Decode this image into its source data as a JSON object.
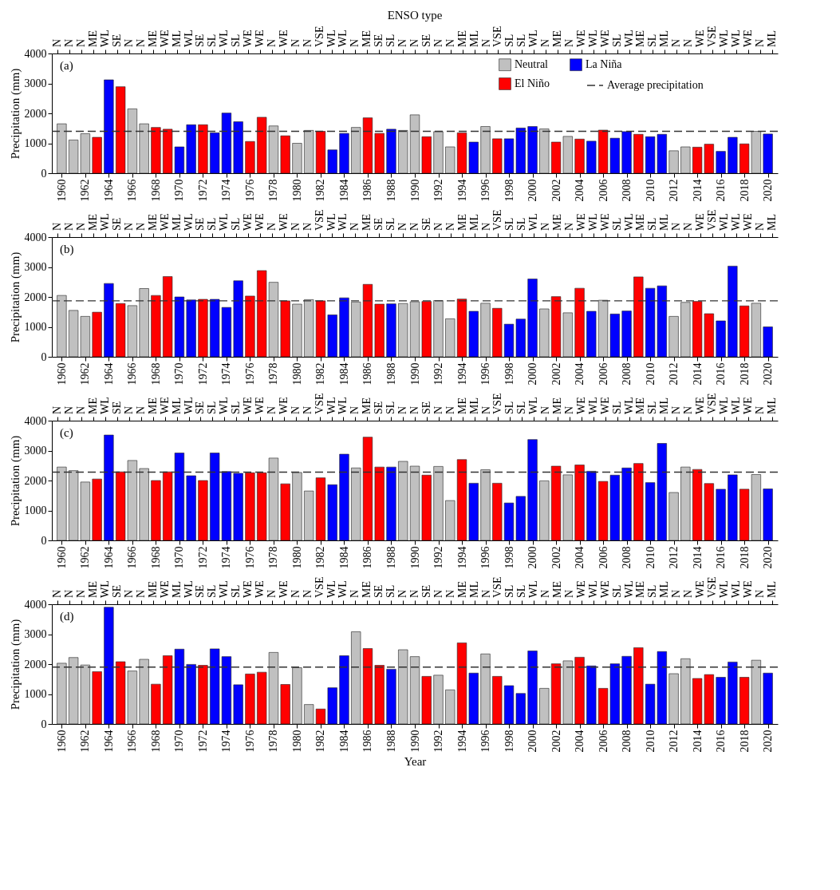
{
  "chart_data": [
    {
      "type": "bar",
      "title": "ENSO type",
      "ylabel": "Precipitation (mm)",
      "legend": "top right",
      "annotations": [
        "(a)",
        "N",
        "N",
        "N",
        "ME",
        "WL",
        "SE",
        "N",
        "N",
        "ME",
        "WE",
        "ML",
        "WL",
        "SE",
        "SL",
        "WL",
        "SL",
        "WE",
        "WE",
        "N",
        "WE",
        "N",
        "N",
        "VSE",
        "WL",
        "WL",
        "N",
        "ME",
        "SE",
        "SL",
        "N",
        "N",
        "SE",
        "N",
        "N",
        "ME",
        "ML",
        "N",
        "VSE",
        "SL",
        "SL",
        "WL",
        "N",
        "ME",
        "N",
        "WE",
        "WL",
        "WE",
        "SL",
        "WL",
        "ME",
        "SL",
        "ML",
        "N",
        "N",
        "WE",
        "VSE",
        "WL",
        "WL",
        "WE",
        "N",
        "ML"
      ],
      "x": [
        1960,
        1961,
        1962,
        1963,
        1964,
        1965,
        1966,
        1967,
        1968,
        1969,
        1970,
        1971,
        1972,
        1973,
        1974,
        1975,
        1976,
        1977,
        1978,
        1979,
        1980,
        1981,
        1982,
        1983,
        1984,
        1985,
        1986,
        1987,
        1988,
        1989,
        1990,
        1991,
        1992,
        1993,
        1994,
        1995,
        1996,
        1997,
        1998,
        1999,
        2000,
        2001,
        2002,
        2003,
        2004,
        2005,
        2006,
        2007,
        2008,
        2009,
        2010,
        2011,
        2012,
        2013,
        2014,
        2015,
        2016,
        2017,
        2018,
        2019,
        2020
      ],
      "xlim": [
        1959.5,
        2020.5
      ],
      "xticks": [
        1960,
        1962,
        1964,
        1966,
        1968,
        1970,
        1972,
        1974,
        1976,
        1978,
        1980,
        1982,
        1984,
        1986,
        1988,
        1990,
        1992,
        1994,
        1996,
        1998,
        2000,
        2002,
        2004,
        2006,
        2008,
        2010,
        2012,
        2014,
        2016,
        2018,
        2020
      ],
      "ylim": [
        0,
        4000
      ],
      "yticks": [
        0,
        1000,
        2000,
        3000,
        4000
      ],
      "ref_lines": [
        {
          "axis": "y",
          "value": 1400,
          "label": "Average precipitation",
          "line_style": "dashed"
        }
      ],
      "series": [
        {
          "name": "Neutral",
          "color": "#c0c0c0",
          "values": [
            1650,
            1110,
            1320,
            null,
            null,
            null,
            2150,
            1650,
            null,
            null,
            null,
            null,
            null,
            null,
            null,
            null,
            null,
            null,
            1580,
            null,
            1000,
            1430,
            null,
            null,
            null,
            1530,
            null,
            null,
            null,
            1430,
            1950,
            null,
            1390,
            880,
            null,
            null,
            1560,
            null,
            null,
            null,
            null,
            1480,
            null,
            1230,
            null,
            null,
            null,
            null,
            null,
            null,
            null,
            null,
            750,
            880,
            null,
            null,
            null,
            null,
            null,
            1400,
            null
          ]
        },
        {
          "name": "El Niño",
          "color": "#ff0000",
          "values": [
            null,
            null,
            null,
            1200,
            null,
            2890,
            null,
            null,
            1530,
            1470,
            null,
            null,
            1620,
            null,
            null,
            null,
            1060,
            1870,
            null,
            1250,
            null,
            null,
            1400,
            null,
            null,
            null,
            1850,
            1330,
            null,
            null,
            null,
            1220,
            null,
            null,
            1350,
            null,
            null,
            1150,
            null,
            null,
            null,
            null,
            1040,
            null,
            1140,
            null,
            1440,
            null,
            null,
            1300,
            null,
            null,
            null,
            null,
            870,
            970,
            null,
            null,
            980,
            null,
            null
          ]
        },
        {
          "name": "La Niña",
          "color": "#0000ff",
          "values": [
            null,
            null,
            null,
            null,
            3120,
            null,
            null,
            null,
            null,
            null,
            880,
            1620,
            null,
            1350,
            2010,
            1720,
            null,
            null,
            null,
            null,
            null,
            null,
            null,
            780,
            1330,
            null,
            null,
            null,
            1470,
            null,
            null,
            null,
            null,
            null,
            null,
            1040,
            null,
            null,
            1150,
            1510,
            1560,
            null,
            null,
            null,
            null,
            1070,
            null,
            1170,
            1390,
            null,
            1220,
            1300,
            null,
            null,
            null,
            null,
            730,
            1200,
            null,
            null,
            1310
          ]
        }
      ]
    },
    {
      "type": "bar",
      "ylabel": "Precipitation (mm)",
      "annotations": [
        "(b)",
        "N",
        "N",
        "N",
        "ME",
        "WL",
        "SE",
        "N",
        "N",
        "ME",
        "WE",
        "ML",
        "WL",
        "SE",
        "SL",
        "WL",
        "SL",
        "WE",
        "WE",
        "N",
        "WE",
        "N",
        "N",
        "VSE",
        "WL",
        "WL",
        "N",
        "ME",
        "SE",
        "SL",
        "N",
        "N",
        "SE",
        "N",
        "N",
        "ME",
        "ML",
        "N",
        "VSE",
        "SL",
        "SL",
        "WL",
        "N",
        "ME",
        "N",
        "WE",
        "WL",
        "WE",
        "SL",
        "WL",
        "ME",
        "SL",
        "ML",
        "N",
        "N",
        "WE",
        "VSE",
        "WL",
        "WL",
        "WE",
        "N",
        "ML"
      ],
      "x": [
        1960,
        1961,
        1962,
        1963,
        1964,
        1965,
        1966,
        1967,
        1968,
        1969,
        1970,
        1971,
        1972,
        1973,
        1974,
        1975,
        1976,
        1977,
        1978,
        1979,
        1980,
        1981,
        1982,
        1983,
        1984,
        1985,
        1986,
        1987,
        1988,
        1989,
        1990,
        1991,
        1992,
        1993,
        1994,
        1995,
        1996,
        1997,
        1998,
        1999,
        2000,
        2001,
        2002,
        2003,
        2004,
        2005,
        2006,
        2007,
        2008,
        2009,
        2010,
        2011,
        2012,
        2013,
        2014,
        2015,
        2016,
        2017,
        2018,
        2019,
        2020
      ],
      "xlim": [
        1959.5,
        2020.5
      ],
      "xticks": [
        1960,
        1962,
        1964,
        1966,
        1968,
        1970,
        1972,
        1974,
        1976,
        1978,
        1980,
        1982,
        1984,
        1986,
        1988,
        1990,
        1992,
        1994,
        1996,
        1998,
        2000,
        2002,
        2004,
        2006,
        2008,
        2010,
        2012,
        2014,
        2016,
        2018,
        2020
      ],
      "ylim": [
        0,
        4000
      ],
      "yticks": [
        0,
        1000,
        2000,
        3000,
        4000
      ],
      "ref_lines": [
        {
          "axis": "y",
          "value": 1870,
          "line_style": "dashed"
        }
      ],
      "series": [
        {
          "color": "#c0c0c0",
          "values": [
            2050,
            1550,
            1350,
            null,
            null,
            null,
            1710,
            2280,
            null,
            null,
            null,
            null,
            null,
            null,
            null,
            null,
            null,
            null,
            2490,
            null,
            1760,
            1910,
            null,
            null,
            null,
            1830,
            null,
            null,
            null,
            1780,
            1840,
            null,
            1880,
            1270,
            null,
            null,
            1790,
            null,
            null,
            null,
            null,
            1600,
            null,
            1470,
            null,
            null,
            1890,
            null,
            null,
            null,
            null,
            null,
            1350,
            1820,
            null,
            null,
            null,
            null,
            null,
            1790,
            null
          ]
        },
        {
          "color": "#ff0000",
          "values": [
            null,
            null,
            null,
            1490,
            null,
            1780,
            null,
            null,
            2050,
            2680,
            null,
            null,
            1920,
            null,
            null,
            null,
            2030,
            2880,
            null,
            1870,
            null,
            null,
            1870,
            null,
            null,
            null,
            2420,
            1760,
            null,
            null,
            null,
            1850,
            null,
            null,
            1930,
            null,
            null,
            1620,
            null,
            null,
            null,
            null,
            2010,
            null,
            2290,
            null,
            null,
            null,
            null,
            2670,
            null,
            null,
            null,
            null,
            1850,
            1440,
            null,
            null,
            1700,
            null,
            null
          ]
        },
        {
          "color": "#0000ff",
          "values": [
            null,
            null,
            null,
            null,
            2450,
            null,
            null,
            null,
            null,
            null,
            2000,
            1900,
            null,
            1920,
            1650,
            2540,
            null,
            null,
            null,
            null,
            null,
            null,
            null,
            1400,
            1970,
            null,
            null,
            null,
            1770,
            null,
            null,
            null,
            null,
            null,
            null,
            1520,
            null,
            null,
            1090,
            1260,
            2600,
            null,
            null,
            null,
            null,
            1520,
            null,
            1430,
            1530,
            null,
            2290,
            2370,
            null,
            null,
            null,
            null,
            1200,
            3030,
            null,
            null,
            1000
          ]
        }
      ]
    },
    {
      "type": "bar",
      "ylabel": "Precipitation (mm)",
      "annotations": [
        "(c)",
        "N",
        "N",
        "N",
        "ME",
        "WL",
        "SE",
        "N",
        "N",
        "ME",
        "WE",
        "ML",
        "WL",
        "SE",
        "SL",
        "WL",
        "SL",
        "WE",
        "WE",
        "N",
        "WE",
        "N",
        "N",
        "VSE",
        "WL",
        "WL",
        "N",
        "ME",
        "SE",
        "SL",
        "N",
        "N",
        "SE",
        "N",
        "N",
        "ME",
        "ML",
        "N",
        "VSE",
        "SL",
        "SL",
        "WL",
        "N",
        "ME",
        "N",
        "WE",
        "WL",
        "WE",
        "SL",
        "WL",
        "ME",
        "SL",
        "ML",
        "N",
        "N",
        "WE",
        "VSE",
        "WL",
        "WL",
        "WE",
        "N",
        "ML"
      ],
      "x": [
        1960,
        1961,
        1962,
        1963,
        1964,
        1965,
        1966,
        1967,
        1968,
        1969,
        1970,
        1971,
        1972,
        1973,
        1974,
        1975,
        1976,
        1977,
        1978,
        1979,
        1980,
        1981,
        1982,
        1983,
        1984,
        1985,
        1986,
        1987,
        1988,
        1989,
        1990,
        1991,
        1992,
        1993,
        1994,
        1995,
        1996,
        1997,
        1998,
        1999,
        2000,
        2001,
        2002,
        2003,
        2004,
        2005,
        2006,
        2007,
        2008,
        2009,
        2010,
        2011,
        2012,
        2013,
        2014,
        2015,
        2016,
        2017,
        2018,
        2019,
        2020
      ],
      "xlim": [
        1959.5,
        2020.5
      ],
      "xticks": [
        1960,
        1962,
        1964,
        1966,
        1968,
        1970,
        1972,
        1974,
        1976,
        1978,
        1980,
        1982,
        1984,
        1986,
        1988,
        1990,
        1992,
        1994,
        1996,
        1998,
        2000,
        2002,
        2004,
        2006,
        2008,
        2010,
        2012,
        2014,
        2016,
        2018,
        2020
      ],
      "ylim": [
        0,
        4000
      ],
      "yticks": [
        0,
        1000,
        2000,
        3000,
        4000
      ],
      "ref_lines": [
        {
          "axis": "y",
          "value": 2280,
          "line_style": "dashed"
        }
      ],
      "series": [
        {
          "color": "#c0c0c0",
          "values": [
            2450,
            2330,
            1950,
            null,
            null,
            null,
            2670,
            2400,
            null,
            null,
            null,
            null,
            null,
            null,
            null,
            null,
            null,
            null,
            2750,
            null,
            2270,
            1650,
            null,
            null,
            null,
            2420,
            null,
            null,
            null,
            2640,
            2480,
            null,
            2470,
            1330,
            null,
            null,
            2360,
            null,
            null,
            null,
            null,
            1990,
            null,
            2190,
            null,
            null,
            null,
            null,
            null,
            null,
            null,
            null,
            1600,
            2450,
            null,
            null,
            null,
            null,
            null,
            2200,
            null
          ]
        },
        {
          "color": "#ff0000",
          "values": [
            null,
            null,
            null,
            2050,
            null,
            2290,
            null,
            null,
            2000,
            2290,
            null,
            null,
            2000,
            null,
            null,
            null,
            2260,
            2260,
            null,
            1890,
            null,
            null,
            2090,
            null,
            null,
            null,
            3450,
            2450,
            null,
            null,
            null,
            2180,
            null,
            null,
            2700,
            null,
            null,
            1910,
            null,
            null,
            null,
            null,
            2480,
            null,
            2520,
            null,
            1970,
            null,
            null,
            2570,
            null,
            null,
            null,
            null,
            2370,
            1900,
            null,
            null,
            1710,
            null,
            null
          ]
        },
        {
          "color": "#0000ff",
          "values": [
            null,
            null,
            null,
            null,
            3520,
            null,
            null,
            null,
            null,
            null,
            2920,
            2160,
            null,
            2920,
            2300,
            2240,
            null,
            null,
            null,
            null,
            null,
            null,
            null,
            1860,
            2880,
            null,
            null,
            null,
            2450,
            null,
            null,
            null,
            null,
            null,
            null,
            1910,
            null,
            null,
            1250,
            1470,
            3370,
            null,
            null,
            null,
            null,
            2310,
            null,
            2180,
            2420,
            null,
            1930,
            3240,
            null,
            null,
            null,
            null,
            1710,
            2190,
            null,
            null,
            1720
          ]
        }
      ]
    },
    {
      "type": "bar",
      "xlabel": "Year",
      "ylabel": "Precipitation (mm)",
      "annotations": [
        "(d)",
        "N",
        "N",
        "N",
        "ME",
        "WL",
        "SE",
        "N",
        "N",
        "ME",
        "WE",
        "ML",
        "WL",
        "SE",
        "SL",
        "WL",
        "SL",
        "WE",
        "WE",
        "N",
        "WE",
        "N",
        "N",
        "VSE",
        "WL",
        "WL",
        "N",
        "ME",
        "SE",
        "SL",
        "N",
        "N",
        "SE",
        "N",
        "N",
        "ME",
        "ML",
        "N",
        "VSE",
        "SL",
        "SL",
        "WL",
        "N",
        "ME",
        "N",
        "WE",
        "WL",
        "WE",
        "SL",
        "WL",
        "ME",
        "SL",
        "ML",
        "N",
        "N",
        "WE",
        "VSE",
        "WL",
        "WL",
        "WE",
        "N",
        "ML"
      ],
      "x": [
        1960,
        1961,
        1962,
        1963,
        1964,
        1965,
        1966,
        1967,
        1968,
        1969,
        1970,
        1971,
        1972,
        1973,
        1974,
        1975,
        1976,
        1977,
        1978,
        1979,
        1980,
        1981,
        1982,
        1983,
        1984,
        1985,
        1986,
        1987,
        1988,
        1989,
        1990,
        1991,
        1992,
        1993,
        1994,
        1995,
        1996,
        1997,
        1998,
        1999,
        2000,
        2001,
        2002,
        2003,
        2004,
        2005,
        2006,
        2007,
        2008,
        2009,
        2010,
        2011,
        2012,
        2013,
        2014,
        2015,
        2016,
        2017,
        2018,
        2019,
        2020
      ],
      "xlim": [
        1959.5,
        2020.5
      ],
      "xticks": [
        1960,
        1962,
        1964,
        1966,
        1968,
        1970,
        1972,
        1974,
        1976,
        1978,
        1980,
        1982,
        1984,
        1986,
        1988,
        1990,
        1992,
        1994,
        1996,
        1998,
        2000,
        2002,
        2004,
        2006,
        2008,
        2010,
        2012,
        2014,
        2016,
        2018,
        2020
      ],
      "ylim": [
        0,
        4000
      ],
      "yticks": [
        0,
        1000,
        2000,
        3000,
        4000
      ],
      "ref_lines": [
        {
          "axis": "y",
          "value": 1900,
          "line_style": "dashed"
        }
      ],
      "series": [
        {
          "color": "#c0c0c0",
          "values": [
            2030,
            2220,
            1970,
            null,
            null,
            null,
            1770,
            2160,
            null,
            null,
            null,
            null,
            null,
            null,
            null,
            null,
            null,
            null,
            2390,
            null,
            1880,
            650,
            null,
            null,
            null,
            3080,
            null,
            null,
            null,
            2480,
            2250,
            null,
            1630,
            1140,
            null,
            null,
            2340,
            null,
            null,
            null,
            null,
            1190,
            null,
            2110,
            null,
            null,
            null,
            null,
            null,
            null,
            null,
            null,
            1680,
            2180,
            null,
            null,
            null,
            null,
            null,
            2130,
            null
          ]
        },
        {
          "color": "#ff0000",
          "values": [
            null,
            null,
            null,
            1750,
            null,
            2080,
            null,
            null,
            1330,
            2280,
            null,
            null,
            1960,
            null,
            null,
            null,
            1670,
            1730,
            null,
            1320,
            null,
            null,
            500,
            null,
            null,
            null,
            2520,
            1960,
            null,
            null,
            null,
            1590,
            null,
            null,
            2710,
            null,
            null,
            1590,
            null,
            null,
            null,
            null,
            2010,
            null,
            2230,
            null,
            1190,
            null,
            null,
            2550,
            null,
            null,
            null,
            null,
            1520,
            1650,
            null,
            null,
            1560,
            null,
            null
          ]
        },
        {
          "color": "#0000ff",
          "values": [
            null,
            null,
            null,
            null,
            3900,
            null,
            null,
            null,
            null,
            null,
            2500,
            1990,
            null,
            2510,
            2250,
            1310,
            null,
            null,
            null,
            null,
            null,
            null,
            null,
            1210,
            2280,
            null,
            null,
            null,
            1830,
            null,
            null,
            null,
            null,
            null,
            null,
            1700,
            null,
            null,
            1280,
            1020,
            2440,
            null,
            null,
            null,
            null,
            1940,
            null,
            2010,
            2260,
            null,
            1330,
            2420,
            null,
            null,
            null,
            null,
            1560,
            2070,
            null,
            null,
            1700
          ]
        }
      ]
    }
  ]
}
